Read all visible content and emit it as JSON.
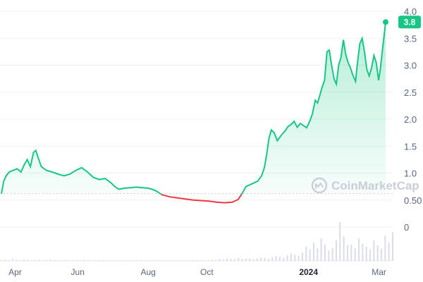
{
  "chart_data": {
    "type": "line",
    "title": "",
    "xlabel": "",
    "ylabel": "",
    "ylim": [
      0,
      4.0
    ],
    "y_ticks": [
      "4.0",
      "3.5",
      "3.0",
      "2.5",
      "2.0",
      "1.5",
      "1.0",
      "0.50",
      "0"
    ],
    "x_ticks": [
      {
        "label": "Apr",
        "bold": false
      },
      {
        "label": "Jun",
        "bold": false
      },
      {
        "label": "Aug",
        "bold": false
      },
      {
        "label": "Oct",
        "bold": false
      },
      {
        "label": "2024",
        "bold": true
      },
      {
        "label": "Mar",
        "bold": false
      }
    ],
    "x_tick_times": [
      0.035,
      0.195,
      0.375,
      0.525,
      0.785,
      0.965
    ],
    "reference_price": 0.62,
    "current_price_label": "3.8",
    "current_price": 3.8,
    "series": [
      {
        "points": [
          [
            0.0,
            0.62
          ],
          [
            0.006,
            0.85
          ],
          [
            0.012,
            0.95
          ],
          [
            0.02,
            1.02
          ],
          [
            0.03,
            1.05
          ],
          [
            0.04,
            1.08
          ],
          [
            0.05,
            1.02
          ],
          [
            0.058,
            1.15
          ],
          [
            0.066,
            1.25
          ],
          [
            0.074,
            1.12
          ],
          [
            0.082,
            1.38
          ],
          [
            0.088,
            1.42
          ],
          [
            0.094,
            1.28
          ],
          [
            0.102,
            1.12
          ],
          [
            0.115,
            1.05
          ],
          [
            0.13,
            1.02
          ],
          [
            0.145,
            0.98
          ],
          [
            0.16,
            0.95
          ],
          [
            0.175,
            0.98
          ],
          [
            0.19,
            1.05
          ],
          [
            0.205,
            1.1
          ],
          [
            0.22,
            1.02
          ],
          [
            0.235,
            0.92
          ],
          [
            0.25,
            0.88
          ],
          [
            0.265,
            0.9
          ],
          [
            0.28,
            0.82
          ],
          [
            0.29,
            0.75
          ],
          [
            0.3,
            0.7
          ],
          [
            0.315,
            0.72
          ],
          [
            0.33,
            0.73
          ],
          [
            0.345,
            0.74
          ],
          [
            0.36,
            0.73
          ],
          [
            0.375,
            0.72
          ],
          [
            0.385,
            0.7
          ],
          [
            0.395,
            0.67
          ],
          [
            0.41,
            0.6
          ],
          [
            0.43,
            0.56
          ],
          [
            0.45,
            0.54
          ],
          [
            0.47,
            0.52
          ],
          [
            0.49,
            0.5
          ],
          [
            0.51,
            0.49
          ],
          [
            0.53,
            0.48
          ],
          [
            0.55,
            0.46
          ],
          [
            0.57,
            0.45
          ],
          [
            0.59,
            0.46
          ],
          [
            0.605,
            0.51
          ],
          [
            0.615,
            0.62
          ],
          [
            0.625,
            0.75
          ],
          [
            0.64,
            0.8
          ],
          [
            0.655,
            0.85
          ],
          [
            0.665,
            0.95
          ],
          [
            0.672,
            1.1
          ],
          [
            0.678,
            1.35
          ],
          [
            0.684,
            1.65
          ],
          [
            0.69,
            1.8
          ],
          [
            0.697,
            1.75
          ],
          [
            0.705,
            1.6
          ],
          [
            0.715,
            1.7
          ],
          [
            0.725,
            1.78
          ],
          [
            0.732,
            1.86
          ],
          [
            0.74,
            1.9
          ],
          [
            0.748,
            1.96
          ],
          [
            0.756,
            1.85
          ],
          [
            0.764,
            1.92
          ],
          [
            0.772,
            1.88
          ],
          [
            0.78,
            1.84
          ],
          [
            0.788,
            1.96
          ],
          [
            0.795,
            2.1
          ],
          [
            0.802,
            2.35
          ],
          [
            0.808,
            2.3
          ],
          [
            0.814,
            2.45
          ],
          [
            0.82,
            2.6
          ],
          [
            0.826,
            2.72
          ],
          [
            0.832,
            3.25
          ],
          [
            0.838,
            3.28
          ],
          [
            0.844,
            3.0
          ],
          [
            0.85,
            2.75
          ],
          [
            0.856,
            2.65
          ],
          [
            0.862,
            3.0
          ],
          [
            0.868,
            3.15
          ],
          [
            0.874,
            3.47
          ],
          [
            0.88,
            3.2
          ],
          [
            0.886,
            3.05
          ],
          [
            0.892,
            2.95
          ],
          [
            0.898,
            2.82
          ],
          [
            0.905,
            2.7
          ],
          [
            0.91,
            3.05
          ],
          [
            0.916,
            3.4
          ],
          [
            0.922,
            3.5
          ],
          [
            0.928,
            3.25
          ],
          [
            0.934,
            2.92
          ],
          [
            0.94,
            2.8
          ],
          [
            0.946,
            2.95
          ],
          [
            0.952,
            3.18
          ],
          [
            0.958,
            3.05
          ],
          [
            0.964,
            2.72
          ],
          [
            0.968,
            2.9
          ],
          [
            0.974,
            3.3
          ],
          [
            0.982,
            3.8
          ]
        ]
      }
    ],
    "volume": [
      0.02,
      0.03,
      0.02,
      0.05,
      0.03,
      0.02,
      0.04,
      0.03,
      0.02,
      0.02,
      0.03,
      0.02,
      0.02,
      0.03,
      0.02,
      0.02,
      0.02,
      0.03,
      0.02,
      0.02,
      0.02,
      0.02,
      0.03,
      0.02,
      0.02,
      0.02,
      0.02,
      0.02,
      0.02,
      0.02,
      0.02,
      0.02,
      0.02,
      0.02,
      0.02,
      0.02,
      0.02,
      0.02,
      0.02,
      0.02,
      0.02,
      0.02,
      0.02,
      0.02,
      0.02,
      0.02,
      0.02,
      0.02,
      0.02,
      0.02,
      0.02,
      0.02,
      0.02,
      0.02,
      0.02,
      0.02,
      0.03,
      0.03,
      0.05,
      0.04,
      0.06,
      0.05,
      0.04,
      0.07,
      0.05,
      0.06,
      0.05,
      0.04,
      0.06,
      0.08,
      0.07,
      0.05,
      0.09,
      0.12,
      0.1,
      0.08,
      0.14,
      0.18,
      0.15,
      0.12,
      0.2,
      0.35,
      0.28,
      0.45,
      0.3,
      0.55,
      0.4,
      0.25,
      0.32,
      0.5,
      0.95,
      0.6,
      0.38,
      0.4,
      0.3,
      0.55,
      0.42,
      0.35,
      0.28,
      0.5,
      0.38,
      0.3,
      0.62,
      0.45,
      0.7
    ],
    "colors": {
      "up": "#16c784",
      "down": "#ea3943",
      "fill": "#16c784",
      "grid": "#eff2f5",
      "reference": "#c9ced8",
      "volume": "#d9dee6",
      "axis_text": "#58667e"
    }
  },
  "watermark": {
    "text": "CoinMarketCap",
    "icon": "coinmarketcap-logo-icon"
  }
}
